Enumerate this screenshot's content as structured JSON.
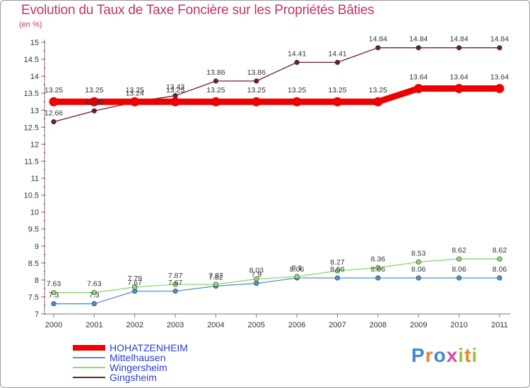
{
  "title": "Evolution du Taux de Taxe Foncière sur les Propriétés Bâties",
  "unit_note": "(en %)",
  "logo_text": "Proxiti",
  "colors": {
    "title": "#c2336b",
    "axis": "#7a7a7a",
    "dot_axis": "#d0004a",
    "legend_text": "#2a3cd8",
    "value_label": "#333333"
  },
  "chart_data": {
    "type": "line",
    "title": "Evolution du Taux de Taxe Foncière sur les Propriétés Bâties",
    "ylabel": "(en %)",
    "xlabel": "",
    "ylim": [
      7,
      15
    ],
    "ytick_step": 0.5,
    "yticks": [
      "7",
      "7.5",
      "8",
      "8.5",
      "9",
      "9.5",
      "10",
      "10.5",
      "11",
      "11.5",
      "12",
      "12.5",
      "13",
      "13.5",
      "14",
      "14.5",
      "15"
    ],
    "categories": [
      "2000",
      "2001",
      "2002",
      "2003",
      "2004",
      "2005",
      "2006",
      "2007",
      "2008",
      "2009",
      "2010",
      "2011"
    ],
    "legend_position": "bottom-left",
    "series": [
      {
        "name": "Gingsheim",
        "color": "#6b1f27",
        "style": "thin",
        "values": [
          12.66,
          12.98,
          13.24,
          13.43,
          13.86,
          13.86,
          14.41,
          14.41,
          14.84,
          14.84,
          14.84,
          14.84
        ],
        "labels": [
          "12.66",
          "12.98",
          "13.24",
          "13.43",
          "13.86",
          "13.86",
          "14.41",
          "14.41",
          "14.84",
          "14.84",
          "14.84",
          "14.84"
        ]
      },
      {
        "name": "HOHATZENHEIM",
        "color": "#ee0000",
        "style": "thick",
        "values": [
          13.25,
          13.25,
          13.25,
          13.25,
          13.25,
          13.25,
          13.25,
          13.25,
          13.25,
          13.64,
          13.64,
          13.64
        ],
        "labels": [
          "13.25",
          "13.25",
          "13.25",
          "13.25",
          "13.25",
          "13.25",
          "13.25",
          "13.25",
          "13.25",
          "13.64",
          "13.64",
          "13.64"
        ]
      },
      {
        "name": "Mittelhausen",
        "color": "#4a90d0",
        "style": "thin",
        "values": [
          7.3,
          7.3,
          7.67,
          7.67,
          7.82,
          7.9,
          8.06,
          8.06,
          8.06,
          8.06,
          8.06,
          8.06
        ],
        "labels": [
          "7.3",
          "7.3",
          "7.67",
          "7.67",
          "7.82",
          "7.9",
          "8.06",
          "8.06",
          "8.06",
          "8.06",
          "8.06",
          "8.06"
        ]
      },
      {
        "name": "Wingersheim",
        "color": "#8fd86a",
        "style": "thin",
        "values": [
          7.63,
          7.63,
          7.79,
          7.87,
          7.87,
          8.03,
          8.1,
          8.27,
          8.36,
          8.53,
          8.62,
          8.62
        ],
        "labels": [
          "7.63",
          "7.63",
          "7.79",
          "7.87",
          "7.87",
          "8.03",
          "8.1",
          "8.27",
          "8.36",
          "8.53",
          "8.62",
          "8.62"
        ]
      }
    ],
    "legend_order": [
      "HOHATZENHEIM",
      "Mittelhausen",
      "Wingersheim",
      "Gingsheim"
    ]
  }
}
